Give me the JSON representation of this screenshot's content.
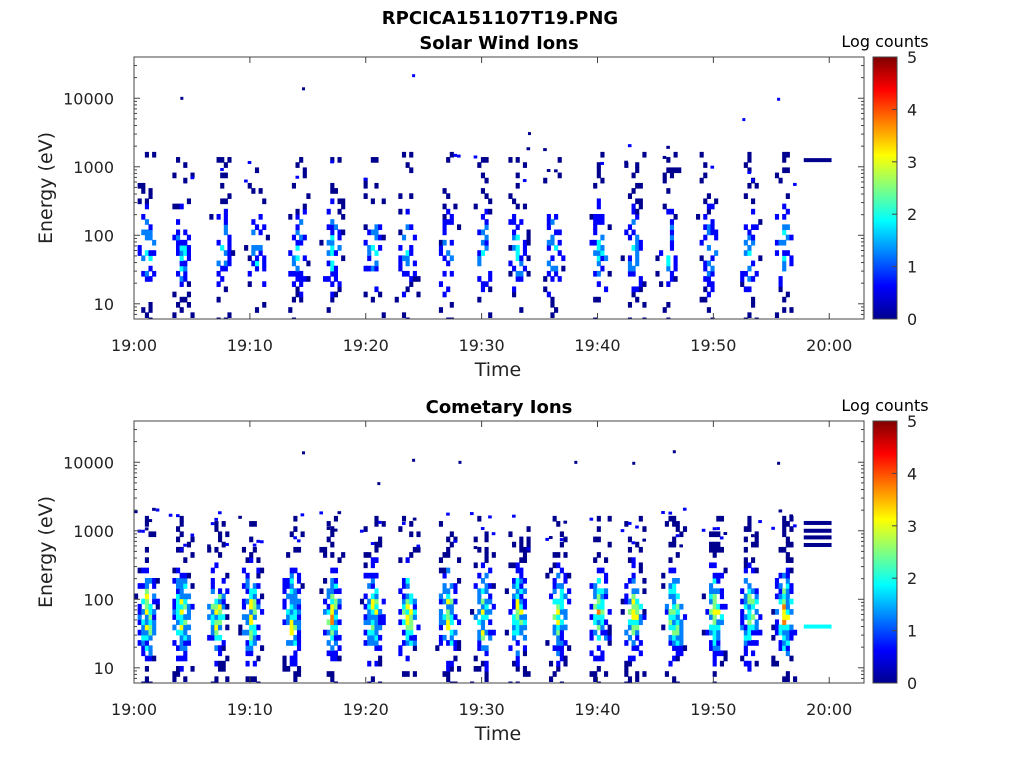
{
  "figure": {
    "title": "RPCICA151107T19.PNG"
  },
  "colormap": [
    "#00008f",
    "#0000ff",
    "#0080ff",
    "#00ffff",
    "#80ff80",
    "#ffff00",
    "#ff8000",
    "#ff0000",
    "#800000"
  ],
  "chart_data": [
    {
      "type": "heatmap",
      "title": "Solar Wind Ions",
      "xlabel": "Time",
      "ylabel": "Energy (eV)",
      "x_ticks": [
        "19:00",
        "19:10",
        "19:20",
        "19:30",
        "19:40",
        "19:50",
        "20:00"
      ],
      "x_range_minutes": [
        0,
        63
      ],
      "y_ticks": [
        10,
        100,
        1000,
        10000
      ],
      "y_scale": "log",
      "y_range": [
        6,
        40000
      ],
      "colorbar": {
        "label": "Log counts",
        "range": [
          0,
          5
        ],
        "ticks": [
          0,
          1,
          2,
          3,
          4,
          5
        ]
      },
      "bursts_minutes": [
        1,
        4,
        7.5,
        10.5,
        14,
        17,
        20.5,
        23.5,
        27,
        30,
        33,
        36,
        40,
        43,
        46,
        49.5,
        53,
        56
      ],
      "peak_log_counts": 1.8,
      "constant_trace": {
        "start_minute": 57.8,
        "end_minute": 60.2,
        "levels_eV": [
          1250
        ],
        "log_counts": 0.3
      },
      "isolated_points": [
        {
          "minute": 4,
          "energy_eV": 9800,
          "log_counts": 0.3
        },
        {
          "minute": 14.5,
          "energy_eV": 13500,
          "log_counts": 0.3
        },
        {
          "minute": 24,
          "energy_eV": 21000,
          "log_counts": 0.5
        },
        {
          "minute": 34,
          "energy_eV": 3000,
          "log_counts": 0.3
        },
        {
          "minute": 52.5,
          "energy_eV": 4800,
          "log_counts": 0.4
        },
        {
          "minute": 55.5,
          "energy_eV": 9500,
          "log_counts": 0.8
        }
      ]
    },
    {
      "type": "heatmap",
      "title": "Cometary Ions",
      "xlabel": "Time",
      "ylabel": "Energy (eV)",
      "x_ticks": [
        "19:00",
        "19:10",
        "19:20",
        "19:30",
        "19:40",
        "19:50",
        "20:00"
      ],
      "x_range_minutes": [
        0,
        63
      ],
      "y_ticks": [
        10,
        100,
        1000,
        10000
      ],
      "y_scale": "log",
      "y_range": [
        6,
        40000
      ],
      "colorbar": {
        "label": "Log counts",
        "range": [
          0,
          5
        ],
        "ticks": [
          0,
          1,
          2,
          3,
          4,
          5
        ]
      },
      "bursts_minutes": [
        1,
        4,
        7,
        10,
        13.5,
        17,
        20.5,
        23.5,
        27,
        30,
        33,
        36.5,
        40,
        43,
        46.5,
        50,
        53,
        56
      ],
      "peak_log_counts": 3.2,
      "constant_trace": {
        "start_minute": 57.8,
        "end_minute": 60.2,
        "levels_eV": [
          1300,
          1000,
          800,
          620
        ],
        "log_counts": 0.2,
        "low_level_eV": 40,
        "low_log_counts": 1.9
      },
      "isolated_points": [
        {
          "minute": 14.5,
          "energy_eV": 13500,
          "log_counts": 0.3
        },
        {
          "minute": 24,
          "energy_eV": 10500,
          "log_counts": 0.3
        },
        {
          "minute": 28,
          "energy_eV": 9800,
          "log_counts": 0.3
        },
        {
          "minute": 38,
          "energy_eV": 9800,
          "log_counts": 0.3
        },
        {
          "minute": 43,
          "energy_eV": 9500,
          "log_counts": 0.3
        },
        {
          "minute": 46.5,
          "energy_eV": 14000,
          "log_counts": 0.3
        },
        {
          "minute": 55.5,
          "energy_eV": 9500,
          "log_counts": 0.3
        },
        {
          "minute": 21,
          "energy_eV": 4800,
          "log_counts": 0.3
        }
      ]
    }
  ]
}
